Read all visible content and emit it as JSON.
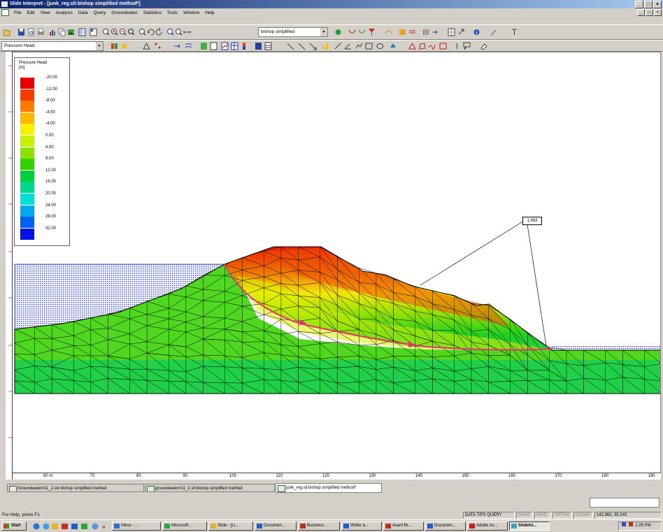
{
  "window": {
    "title": "Slide Interpret - [junk_reg.sli:bishop simplified method*]",
    "caption_buttons": [
      "_",
      "□",
      "×"
    ],
    "mdi_buttons": [
      "_",
      "□",
      "×"
    ]
  },
  "menu": [
    "File",
    "Edit",
    "View",
    "Analysis",
    "Data",
    "Query",
    "Groundwater",
    "Statistics",
    "Tools",
    "Window",
    "Help"
  ],
  "toolbar": {
    "method_combo": "bishop simplified",
    "data_combo": "Pressure Head",
    "combo_arrow": "▾"
  },
  "legend": {
    "title_line1": "Pressure Head",
    "title_line2": "[m]",
    "entries": [
      {
        "value": "-20.00",
        "color": "#e80000"
      },
      {
        "value": "-12.00",
        "color": "#f43c00"
      },
      {
        "value": "-8.00",
        "color": "#fc7a00"
      },
      {
        "value": "-4.00",
        "color": "#fcb800"
      },
      {
        "value": "-4.00",
        "color": "#f8f000"
      },
      {
        "value": "0.00",
        "color": "#c8f000"
      },
      {
        "value": "4.00",
        "color": "#8ee000"
      },
      {
        "value": "8.00",
        "color": "#34d000"
      },
      {
        "value": "12.00",
        "color": "#00d040"
      },
      {
        "value": "16.00",
        "color": "#00d890"
      },
      {
        "value": "20.00",
        "color": "#00e0d8"
      },
      {
        "value": "24.00",
        "color": "#00a8f0"
      },
      {
        "value": "28.00",
        "color": "#0060f0"
      },
      {
        "value": "32.00",
        "color": "#0010e8"
      }
    ]
  },
  "safety_factor": "1.993",
  "xaxis_ticks": [
    "60 m",
    "70",
    "80",
    "90",
    "100",
    "110",
    "120",
    "130",
    "140",
    "150",
    "160",
    "170",
    "180",
    "190"
  ],
  "doc_tabs": [
    "Groundwater#11_2.slv:bishop simplified method",
    "groundwater#11_2.sli:bishop simplified method",
    "junk_reg.sli:bishop simplified method*"
  ],
  "status": {
    "help_text": "For Help, press F1",
    "data_tips": "DATA TIPS QUERY",
    "indicators": [
      "SNAP",
      "GRID",
      "ORTHO",
      "OSNAP"
    ],
    "coords": "142.960, 35.243"
  },
  "taskbar": {
    "start_label": "Start",
    "items": [
      "Inbox - ...",
      "Microsoft ...",
      "Slide - [Li...",
      "Documen...",
      "Business ...",
      "Writer a...",
      "Avant Br...",
      "Documen...",
      "Adobe Ac...",
      "SlideInt..."
    ],
    "clock": "1:29 PM"
  },
  "colors": {
    "title_gradient_start": "#0a246a",
    "title_gradient_end": "#a6caf0",
    "water_fill": "#4050d8",
    "slip_surface": "#e8306a",
    "window_bg": "#d4d0c8"
  }
}
